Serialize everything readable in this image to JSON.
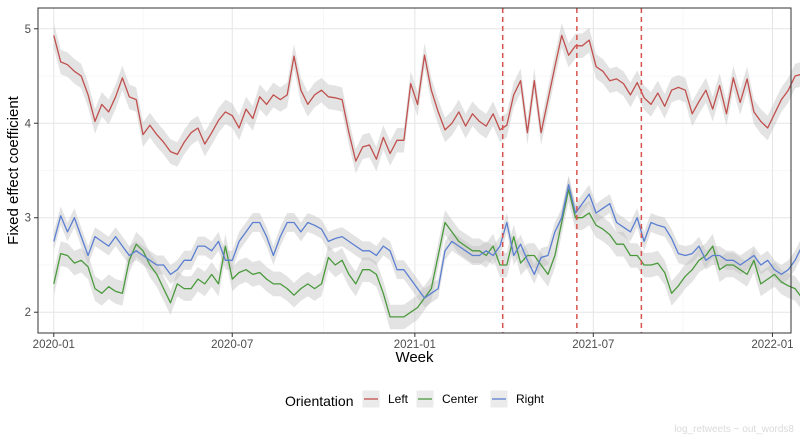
{
  "chart_data": {
    "type": "line",
    "xlabel": "Week",
    "ylabel": "Fixed effect coefficient",
    "x_ticks": [
      "2020-01",
      "2020-07",
      "2021-01",
      "2021-07",
      "2022-01"
    ],
    "x_tick_values": [
      0,
      26,
      52.6,
      78.6,
      104.7
    ],
    "y_ticks": [
      "2",
      "3",
      "4",
      "5"
    ],
    "xlim": [
      -2.3,
      107.4
    ],
    "ylim": [
      1.78,
      5.22
    ],
    "grid": true,
    "legend": {
      "title": "Orientation",
      "position": "bottom"
    },
    "vlines": {
      "color": "#d9534f",
      "style": "dashed",
      "x": [
        65.4,
        76.2,
        85.6
      ]
    },
    "series": [
      {
        "name": "Left",
        "color": "#c0504d",
        "band_halfwidth": 0.13,
        "values": [
          4.93,
          4.65,
          4.62,
          4.55,
          4.5,
          4.3,
          4.02,
          4.2,
          4.12,
          4.28,
          4.48,
          4.28,
          4.25,
          3.88,
          3.98,
          3.88,
          3.8,
          3.7,
          3.67,
          3.8,
          3.9,
          3.95,
          3.78,
          3.9,
          4.03,
          4.12,
          4.08,
          3.95,
          4.15,
          4.05,
          4.28,
          4.2,
          4.3,
          4.25,
          4.3,
          4.71,
          4.35,
          4.2,
          4.3,
          4.35,
          4.28,
          4.27,
          4.25,
          3.9,
          3.6,
          3.75,
          3.77,
          3.62,
          3.85,
          3.68,
          3.82,
          3.82,
          4.42,
          4.2,
          4.72,
          4.35,
          4.12,
          3.93,
          4.0,
          4.12,
          3.97,
          4.1,
          4.02,
          3.97,
          4.1,
          3.93,
          3.98,
          4.3,
          4.45,
          3.9,
          4.45,
          3.9,
          4.25,
          4.6,
          4.93,
          4.72,
          4.82,
          4.82,
          4.88,
          4.6,
          4.55,
          4.45,
          4.47,
          4.42,
          4.3,
          4.43,
          4.27,
          4.2,
          4.32,
          4.18,
          4.35,
          4.38,
          4.35,
          4.1,
          4.23,
          4.35,
          4.15,
          4.4,
          4.1,
          4.48,
          4.22,
          4.47,
          4.12,
          4.02,
          3.95,
          4.1,
          4.25,
          4.35,
          4.5,
          4.52
        ]
      },
      {
        "name": "Center",
        "color": "#4a9a3c",
        "band_halfwidth": 0.13,
        "values": [
          2.3,
          2.62,
          2.6,
          2.52,
          2.55,
          2.48,
          2.25,
          2.2,
          2.27,
          2.22,
          2.2,
          2.55,
          2.72,
          2.65,
          2.5,
          2.4,
          2.25,
          2.1,
          2.3,
          2.25,
          2.25,
          2.35,
          2.3,
          2.4,
          2.3,
          2.7,
          2.35,
          2.42,
          2.45,
          2.4,
          2.42,
          2.35,
          2.3,
          2.3,
          2.25,
          2.18,
          2.25,
          2.3,
          2.25,
          2.3,
          2.58,
          2.5,
          2.55,
          2.4,
          2.3,
          2.45,
          2.45,
          2.4,
          2.2,
          1.95,
          1.95,
          1.95,
          2.0,
          2.05,
          2.15,
          2.25,
          2.6,
          2.95,
          2.85,
          2.75,
          2.7,
          2.65,
          2.65,
          2.6,
          2.7,
          2.5,
          2.5,
          2.8,
          2.52,
          2.6,
          2.6,
          2.5,
          2.4,
          2.6,
          2.95,
          3.3,
          3.0,
          3.0,
          3.05,
          2.92,
          2.88,
          2.82,
          2.72,
          2.72,
          2.6,
          2.6,
          2.5,
          2.5,
          2.52,
          2.42,
          2.2,
          2.28,
          2.38,
          2.45,
          2.55,
          2.6,
          2.7,
          2.45,
          2.5,
          2.5,
          2.45,
          2.4,
          2.55,
          2.3,
          2.35,
          2.4,
          2.32,
          2.28,
          2.25,
          2.15
        ]
      },
      {
        "name": "Right",
        "color": "#5b7fd1",
        "band_halfwidth": 0.1,
        "values": [
          2.75,
          3.02,
          2.85,
          3.0,
          2.8,
          2.6,
          2.8,
          2.75,
          2.7,
          2.8,
          2.7,
          2.6,
          2.65,
          2.6,
          2.55,
          2.5,
          2.5,
          2.4,
          2.45,
          2.55,
          2.55,
          2.7,
          2.7,
          2.65,
          2.75,
          2.55,
          2.55,
          2.75,
          2.85,
          2.95,
          2.95,
          2.8,
          2.6,
          2.8,
          2.95,
          2.95,
          2.85,
          2.95,
          2.92,
          2.88,
          2.75,
          2.78,
          2.8,
          2.75,
          2.7,
          2.65,
          2.65,
          2.6,
          2.7,
          2.65,
          2.45,
          2.45,
          2.35,
          2.25,
          2.15,
          2.2,
          2.25,
          2.65,
          2.75,
          2.7,
          2.65,
          2.6,
          2.6,
          2.65,
          2.6,
          2.7,
          2.95,
          2.6,
          2.72,
          2.55,
          2.4,
          2.58,
          2.6,
          2.85,
          3.0,
          3.35,
          3.05,
          3.15,
          3.25,
          3.05,
          3.1,
          3.15,
          2.95,
          2.9,
          2.85,
          3.0,
          2.75,
          2.95,
          2.92,
          2.9,
          2.78,
          2.62,
          2.6,
          2.62,
          2.7,
          2.55,
          2.6,
          2.6,
          2.55,
          2.55,
          2.5,
          2.55,
          2.6,
          2.5,
          2.55,
          2.45,
          2.4,
          2.45,
          2.55,
          2.7
        ]
      }
    ]
  },
  "watermark": "log_retweets ~ out_words8"
}
